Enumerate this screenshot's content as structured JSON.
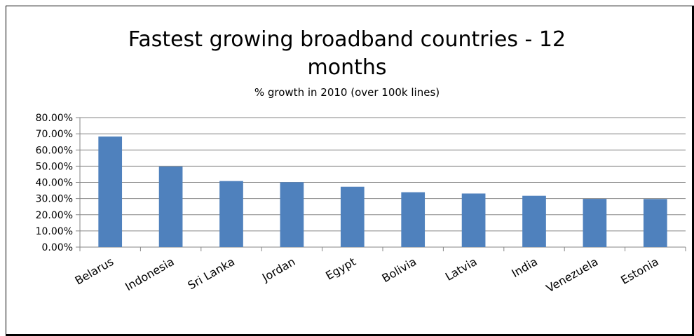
{
  "chart_data": {
    "type": "bar",
    "title": "Fastest growing broadband countries - 12 months",
    "title_lines": [
      "Fastest growing broadband countries - 12",
      "months"
    ],
    "subtitle": "% growth in 2010 (over 100k lines)",
    "xlabel": "",
    "ylabel": "",
    "categories": [
      "Belarus",
      "Indonesia",
      "Sri Lanka",
      "Jordan",
      "Egypt",
      "Bolivia",
      "Latvia",
      "India",
      "Venezuela",
      "Estonia"
    ],
    "values": [
      0.683,
      0.498,
      0.408,
      0.401,
      0.373,
      0.339,
      0.331,
      0.317,
      0.298,
      0.297
    ],
    "ylim": [
      0,
      0.8
    ],
    "yticks": [
      0,
      0.1,
      0.2,
      0.3,
      0.4,
      0.5,
      0.6,
      0.7,
      0.8
    ],
    "ytick_labels": [
      "0.00%",
      "10.00%",
      "20.00%",
      "30.00%",
      "40.00%",
      "50.00%",
      "60.00%",
      "70.00%",
      "80.00%"
    ],
    "grid": true,
    "legend": false,
    "bar_color": "#4f81bd",
    "grid_color": "#868686"
  }
}
